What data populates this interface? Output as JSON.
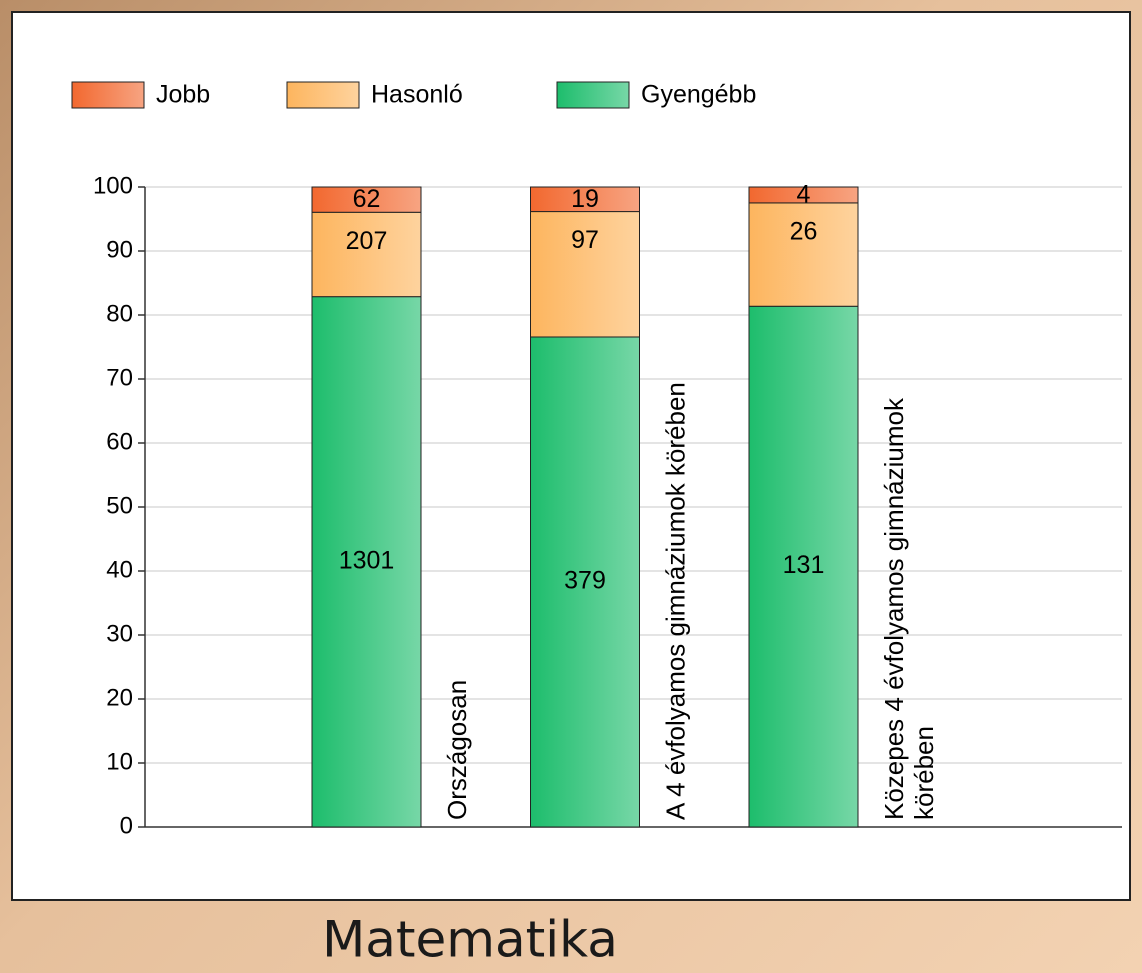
{
  "chart_data": {
    "type": "percent_stacked_bar",
    "title": "Matematika",
    "categories": [
      "Országosan",
      "A 4 évfolyamos gimnáziumok körében",
      "Közepes 4 évfolyamos gimnáziumok körében"
    ],
    "series": [
      {
        "name": "Gyengébb",
        "color": "#1dbd6c",
        "values": [
          1301,
          379,
          131
        ]
      },
      {
        "name": "Hasonló",
        "color": "#fdb55e",
        "values": [
          207,
          97,
          26
        ]
      },
      {
        "name": "Jobb",
        "color": "#f2682f",
        "values": [
          62,
          19,
          4
        ]
      }
    ],
    "legend_order": [
      2,
      1,
      0
    ],
    "ylim": [
      0,
      100
    ],
    "yticks": [
      0,
      10,
      20,
      30,
      40,
      50,
      60,
      70,
      80,
      90,
      100
    ],
    "grid": true
  }
}
